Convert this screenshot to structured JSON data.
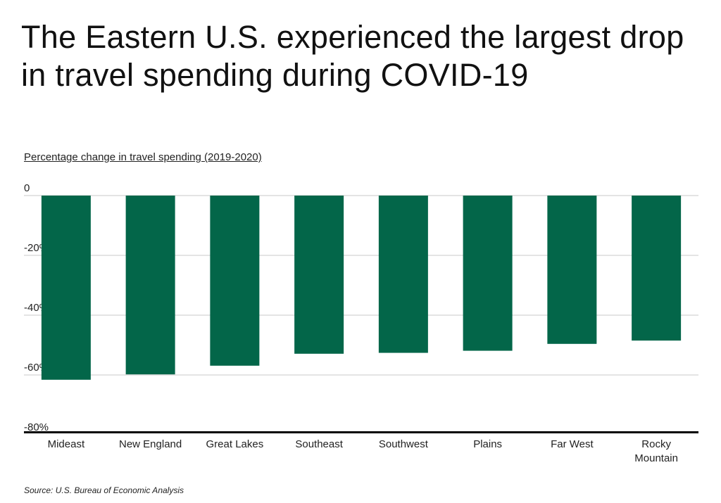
{
  "title": "The Eastern U.S. experienced the largest drop in travel spending during COVID-19",
  "source": "Source:  U.S. Bureau of Economic Analysis",
  "chart_data": {
    "type": "bar",
    "title": "The Eastern U.S. experienced the largest drop in travel spending during COVID-19",
    "ylabel": "Percentage change in travel spending (2019-2020)",
    "xlabel": "",
    "categories": [
      "Mideast",
      "New England",
      "Great Lakes",
      "Southeast",
      "Southwest",
      "Plains",
      "Far West",
      "Rocky Mountain"
    ],
    "values": [
      -61.6,
      -59.8,
      -56.9,
      -52.9,
      -52.6,
      -51.9,
      -49.6,
      -48.5
    ],
    "ylim": [
      -80,
      0
    ],
    "yticks": [
      0,
      -20,
      -40,
      -60,
      -80
    ],
    "ytick_labels": [
      "0",
      "-20%",
      "-40%",
      "-60%",
      "-80%"
    ],
    "grid": true,
    "bar_color": "#036649"
  }
}
